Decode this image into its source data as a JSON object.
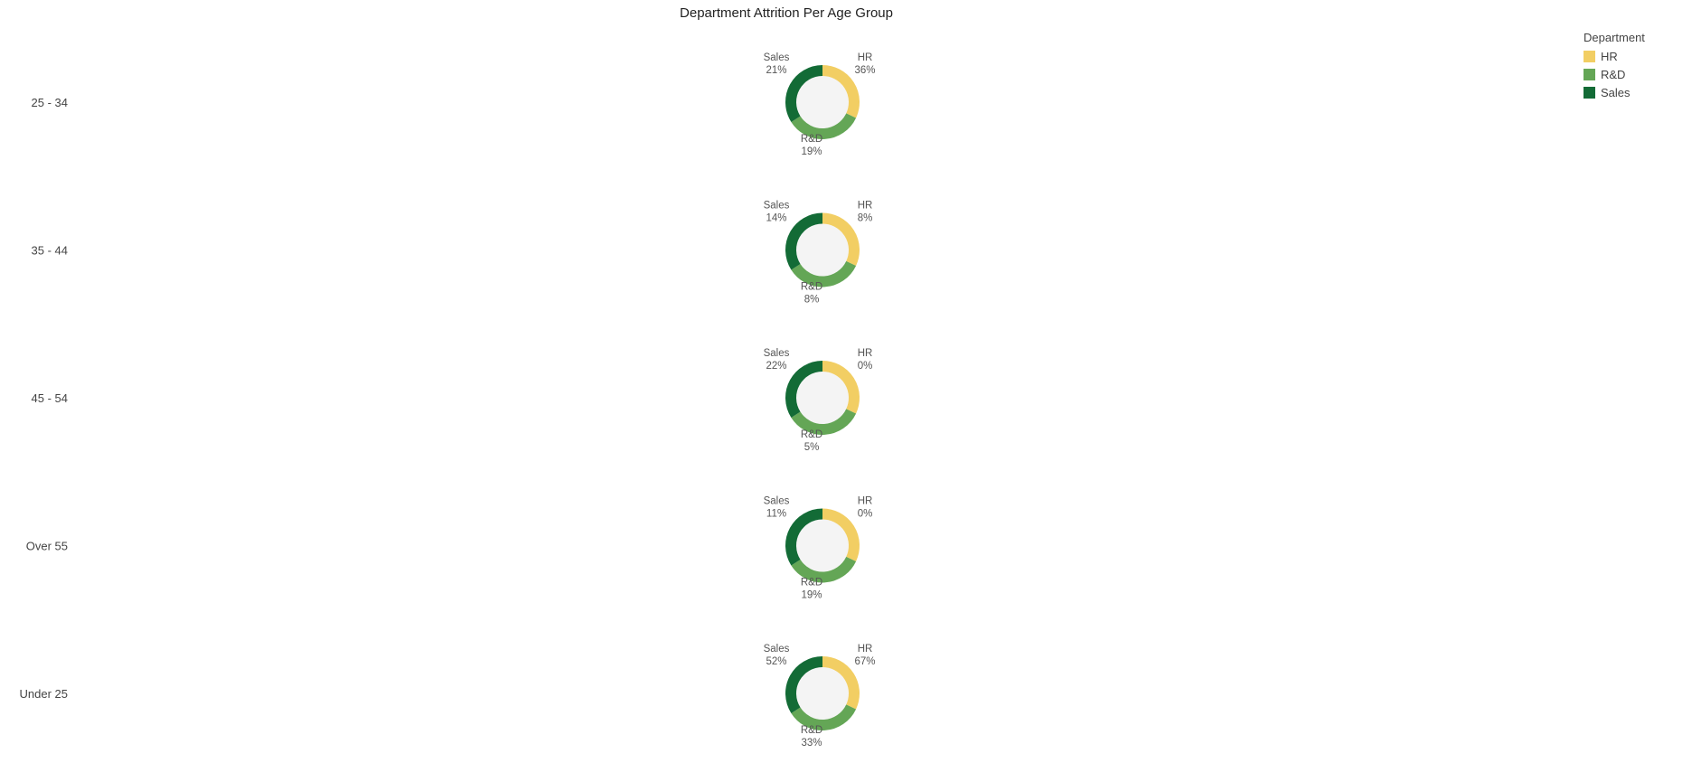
{
  "chart_data": {
    "type": "pie",
    "variant": "donut-small-multiples",
    "title": "Department Attrition Per Age Group",
    "legend": {
      "title": "Department",
      "placement": "top-right",
      "entries": [
        "HR",
        "R&D",
        "Sales"
      ]
    },
    "colors": {
      "HR": "#f2ce63",
      "R&D": "#64a656",
      "Sales": "#136b36",
      "hole": "#f4f4f4"
    },
    "groups": [
      {
        "label": "25 - 34",
        "slices": [
          {
            "name": "HR",
            "value": 36,
            "display": "36%"
          },
          {
            "name": "R&D",
            "value": 19,
            "display": "19%"
          },
          {
            "name": "Sales",
            "value": 21,
            "display": "21%"
          }
        ]
      },
      {
        "label": "35 - 44",
        "slices": [
          {
            "name": "HR",
            "value": 8,
            "display": "8%"
          },
          {
            "name": "R&D",
            "value": 8,
            "display": "8%"
          },
          {
            "name": "Sales",
            "value": 14,
            "display": "14%"
          }
        ]
      },
      {
        "label": "45 - 54",
        "slices": [
          {
            "name": "HR",
            "value": 0,
            "display": "0%"
          },
          {
            "name": "R&D",
            "value": 5,
            "display": "5%"
          },
          {
            "name": "Sales",
            "value": 22,
            "display": "22%"
          }
        ]
      },
      {
        "label": "Over 55",
        "slices": [
          {
            "name": "HR",
            "value": 0,
            "display": "0%"
          },
          {
            "name": "R&D",
            "value": 19,
            "display": "19%"
          },
          {
            "name": "Sales",
            "value": 11,
            "display": "11%"
          }
        ]
      },
      {
        "label": "Under 25",
        "slices": [
          {
            "name": "HR",
            "value": 67,
            "display": "67%"
          },
          {
            "name": "R&D",
            "value": 33,
            "display": "33%"
          },
          {
            "name": "Sales",
            "value": 52,
            "display": "52%"
          }
        ]
      }
    ]
  }
}
